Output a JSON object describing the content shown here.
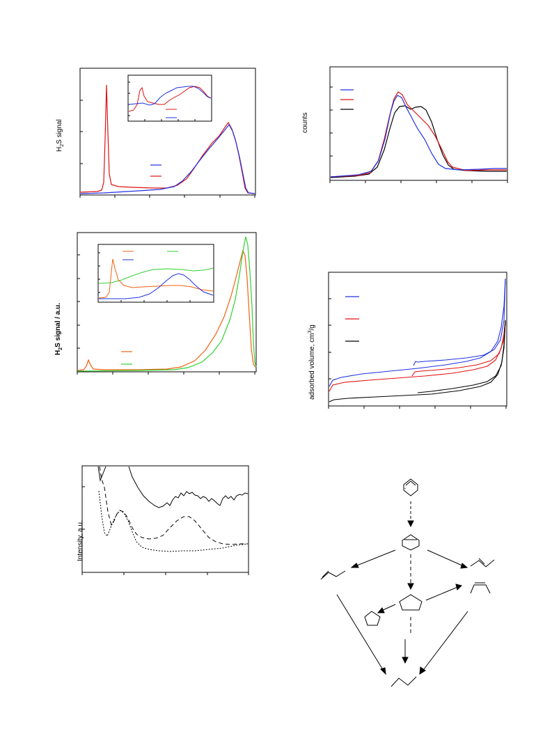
{
  "panels": [
    {
      "id": "tpr-1",
      "ylabel_main": "H",
      "ylabel_sub": "2",
      "ylabel_rest": "S signal",
      "series_colors": [
        "#e01010",
        "#2030e0"
      ],
      "legend": [],
      "inset": true
    },
    {
      "id": "counts",
      "ylabel": "counts",
      "series_colors": [
        "#2030e0",
        "#e01010",
        "#000000"
      ],
      "legend": []
    },
    {
      "id": "tpr-2",
      "ylabel_main": "H",
      "ylabel_sub": "2",
      "ylabel_rest": "S signal  / a.u.",
      "series_colors": [
        "#f06010",
        "#30d030",
        "#2030e0"
      ],
      "legend": [],
      "inset": true
    },
    {
      "id": "adsorption",
      "ylabel_main": "adsorbed volume, cm",
      "ylabel_sup": "3",
      "ylabel_rest": "/g",
      "series_colors": [
        "#2030e0",
        "#e01010",
        "#000000"
      ],
      "legend": []
    },
    {
      "id": "xrd",
      "ylabel": "Intensity, a.u.",
      "series_styles": [
        "solid",
        "dashed",
        "dotted"
      ],
      "legend": []
    }
  ],
  "scheme": {
    "description_labels": []
  }
}
